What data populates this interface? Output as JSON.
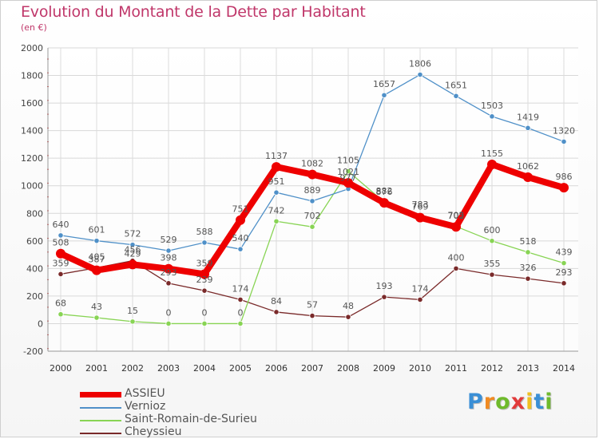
{
  "header": {
    "title": "Evolution du Montant de la Dette par Habitant",
    "subtitle": "(en €)"
  },
  "logo": {
    "letters": [
      "P",
      "r",
      "o",
      "x",
      "i",
      "t",
      "i"
    ],
    "colors": [
      "#3a8fd6",
      "#f08a22",
      "#6fba2c",
      "#e23b3b",
      "#f0c020",
      "#3a8fd6",
      "#6fba2c"
    ]
  },
  "chart_data": {
    "type": "line",
    "title": "Evolution du Montant de la Dette par Habitant",
    "subtitle": "(en €)",
    "x": [
      "2000",
      "2001",
      "2002",
      "2003",
      "2004",
      "2005",
      "2006",
      "2007",
      "2008",
      "2009",
      "2010",
      "2011",
      "2012",
      "2013",
      "2014"
    ],
    "yticks": [
      "-200",
      "0",
      "200",
      "400",
      "600",
      "800",
      "1000",
      "1200",
      "1400",
      "1600",
      "1800",
      "2000"
    ],
    "ylim": [
      -200,
      2000
    ],
    "grid": true,
    "legend": "bottom-left",
    "series": [
      {
        "name": "ASSIEU",
        "color": "#ee0000",
        "values": [
          508,
          387,
          429,
          398,
          359,
          751,
          1137,
          1082,
          1021,
          876,
          769,
          702,
          1155,
          1062,
          986
        ],
        "labels": [
          "508",
          "387",
          "429",
          "398",
          "359",
          "751",
          "1137",
          "1082",
          "1021",
          "876",
          "769",
          "702",
          "1155",
          "1062",
          "986"
        ]
      },
      {
        "name": "Vernioz",
        "color": "#4f90c8",
        "values": [
          640,
          601,
          572,
          529,
          588,
          540,
          951,
          889,
          977,
          1657,
          1806,
          1651,
          1503,
          1419,
          1320
        ],
        "labels": [
          "640",
          "601",
          "572",
          "529",
          "588",
          "540",
          "951",
          "889",
          "977",
          "1657",
          "1806",
          "1651",
          "1503",
          "1419",
          "1320"
        ]
      },
      {
        "name": "Saint-Romain-de-Surieu",
        "color": "#88d454",
        "values": [
          68,
          43,
          15,
          0,
          0,
          0,
          742,
          702,
          1105,
          882,
          783,
          705,
          600,
          518,
          439
        ],
        "labels": [
          "68",
          "43",
          "15",
          "0",
          "0",
          "0",
          "742",
          "702",
          "1105",
          "882",
          "783",
          "705",
          "600",
          "518",
          "439"
        ]
      },
      {
        "name": "Cheyssieu",
        "color": "#7a2a2a",
        "values": [
          359,
          405,
          456,
          293,
          239,
          174,
          84,
          57,
          48,
          193,
          174,
          400,
          355,
          326,
          293
        ],
        "labels": [
          "359",
          "405",
          "456",
          "293",
          "239",
          "174",
          "84",
          "57",
          "48",
          "193",
          "174",
          "400",
          "355",
          "326",
          "293"
        ]
      }
    ]
  }
}
